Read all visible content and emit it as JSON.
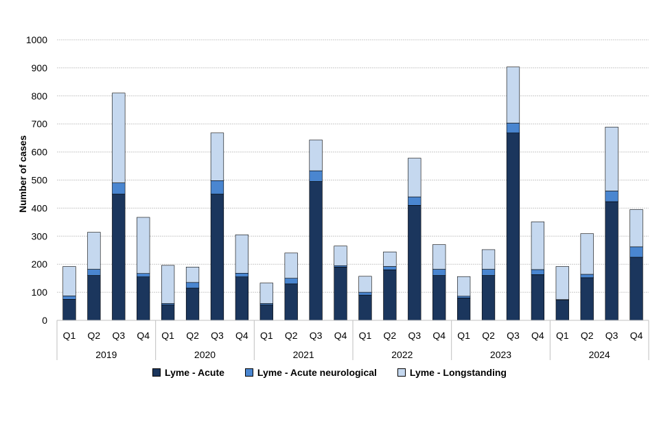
{
  "chart_data": {
    "type": "bar",
    "stacked": true,
    "ylabel": "Number of cases",
    "xlabel": "",
    "ylim": [
      0,
      1000
    ],
    "yticks": [
      0,
      100,
      200,
      300,
      400,
      500,
      600,
      700,
      800,
      900,
      1000
    ],
    "grid": true,
    "legend_position": "bottom",
    "years": [
      "2019",
      "2020",
      "2021",
      "2022",
      "2023",
      "2024"
    ],
    "categories": [
      "Q1",
      "Q2",
      "Q3",
      "Q4",
      "Q1",
      "Q2",
      "Q3",
      "Q4",
      "Q1",
      "Q2",
      "Q3",
      "Q4",
      "Q1",
      "Q2",
      "Q3",
      "Q4",
      "Q1",
      "Q2",
      "Q3",
      "Q4",
      "Q1",
      "Q2",
      "Q3",
      "Q4"
    ],
    "series": [
      {
        "name": "Lyme - Acute",
        "color": "#1b365d",
        "values": [
          75,
          160,
          450,
          155,
          55,
          115,
          450,
          155,
          55,
          130,
          495,
          190,
          90,
          180,
          410,
          160,
          80,
          160,
          668,
          163,
          72,
          152,
          423,
          225
        ]
      },
      {
        "name": "Lyme - Acute neurological",
        "color": "#4a86d0",
        "values": [
          12,
          22,
          40,
          12,
          5,
          20,
          48,
          13,
          5,
          20,
          38,
          5,
          10,
          12,
          30,
          22,
          6,
          22,
          35,
          18,
          2,
          12,
          38,
          37
        ]
      },
      {
        "name": "Lyme - Longstanding",
        "color": "#c5d8ef",
        "values": [
          105,
          132,
          320,
          200,
          136,
          55,
          170,
          137,
          73,
          90,
          110,
          70,
          57,
          52,
          138,
          88,
          70,
          70,
          200,
          170,
          118,
          145,
          228,
          133
        ]
      }
    ]
  }
}
